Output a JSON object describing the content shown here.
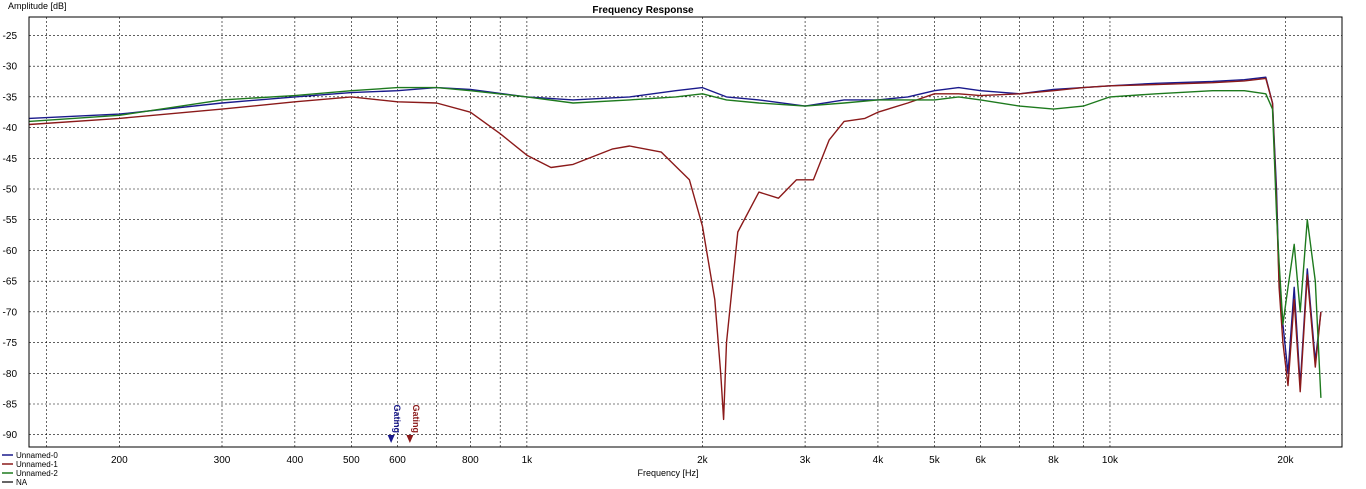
{
  "chart_data": {
    "type": "line",
    "title": "Frequency Response",
    "xlabel": "Frequency [Hz]",
    "ylabel": "Amplitude [dB]",
    "xscale": "log",
    "xlim": [
      140,
      25000
    ],
    "ylim": [
      -92,
      -22
    ],
    "grid": true,
    "legend_position": "bottom-left",
    "colors": {
      "background": "#ffffff",
      "grid": "#000000",
      "Unnamed-0": "#1a1a8c",
      "Unnamed-1": "#8b1a1a",
      "Unnamed-2": "#1e7a1e",
      "NA": "#333333"
    },
    "x_ticks": [
      {
        "value": 200,
        "label": "200"
      },
      {
        "value": 300,
        "label": "300"
      },
      {
        "value": 400,
        "label": "400"
      },
      {
        "value": 500,
        "label": "500"
      },
      {
        "value": 600,
        "label": "600"
      },
      {
        "value": 800,
        "label": "800"
      },
      {
        "value": 1000,
        "label": "1k"
      },
      {
        "value": 2000,
        "label": "2k"
      },
      {
        "value": 3000,
        "label": "3k"
      },
      {
        "value": 4000,
        "label": "4k"
      },
      {
        "value": 5000,
        "label": "5k"
      },
      {
        "value": 6000,
        "label": "6k"
      },
      {
        "value": 8000,
        "label": "8k"
      },
      {
        "value": 10000,
        "label": "10k"
      },
      {
        "value": 20000,
        "label": "20k"
      }
    ],
    "x_minor_grid": [
      150,
      700,
      900,
      7000,
      9000
    ],
    "y_ticks": [
      -25,
      -30,
      -35,
      -40,
      -45,
      -50,
      -55,
      -60,
      -65,
      -70,
      -75,
      -80,
      -85,
      -90
    ],
    "markers": [
      {
        "label": "Gating",
        "x": 585,
        "color": "#1a1a8c"
      },
      {
        "label": "Gating",
        "x": 630,
        "color": "#8b1a1a"
      }
    ],
    "series": [
      {
        "name": "Unnamed-0",
        "x": [
          140,
          200,
          300,
          400,
          500,
          600,
          700,
          800,
          1000,
          1200,
          1500,
          1800,
          2000,
          2200,
          2500,
          3000,
          3500,
          4000,
          4500,
          5000,
          5500,
          6000,
          7000,
          8000,
          9000,
          10000,
          12000,
          15000,
          17000,
          18500,
          19000,
          19300,
          19500,
          19800,
          20200,
          20700,
          21200,
          21800,
          22500,
          23000
        ],
        "y": [
          -38.5,
          -37.8,
          -36,
          -35,
          -34.3,
          -34,
          -33.5,
          -33.8,
          -35,
          -35.5,
          -35,
          -34,
          -33.5,
          -35,
          -35.5,
          -36.5,
          -35.5,
          -35.5,
          -35,
          -34,
          -33.5,
          -34,
          -34.5,
          -33.8,
          -33.5,
          -33.2,
          -32.8,
          -32.5,
          -32.2,
          -31.8,
          -36,
          -50,
          -65,
          -72,
          -80,
          -66,
          -82,
          -63,
          -78,
          -70
        ]
      },
      {
        "name": "Unnamed-1",
        "x": [
          140,
          200,
          300,
          400,
          500,
          600,
          700,
          800,
          900,
          1000,
          1100,
          1200,
          1400,
          1500,
          1700,
          1900,
          2000,
          2100,
          2150,
          2175,
          2200,
          2300,
          2500,
          2700,
          2900,
          3100,
          3300,
          3500,
          3800,
          4000,
          4500,
          5000,
          5500,
          6000,
          7000,
          8000,
          9000,
          10000,
          12000,
          15000,
          17000,
          18500,
          19000,
          19300,
          19500,
          19800,
          20200,
          20700,
          21200,
          21800,
          22500,
          23000
        ],
        "y": [
          -39.5,
          -38.5,
          -37,
          -35.8,
          -35,
          -35.8,
          -36,
          -37.5,
          -41,
          -44.5,
          -46.5,
          -46,
          -43.5,
          -43,
          -44,
          -48.5,
          -56,
          -68,
          -80,
          -87.5,
          -75,
          -57,
          -50.5,
          -51.5,
          -48.5,
          -48.5,
          -42,
          -39,
          -38.5,
          -37.5,
          -36,
          -34.5,
          -34.5,
          -34.8,
          -34.5,
          -34,
          -33.5,
          -33.2,
          -33,
          -32.7,
          -32.4,
          -32,
          -36,
          -52,
          -66,
          -75,
          -82,
          -68,
          -83,
          -64,
          -79,
          -70
        ]
      },
      {
        "name": "Unnamed-2",
        "x": [
          140,
          200,
          300,
          400,
          500,
          600,
          700,
          800,
          1000,
          1200,
          1500,
          1800,
          2000,
          2200,
          2500,
          3000,
          3500,
          4000,
          4500,
          5000,
          5500,
          6000,
          7000,
          8000,
          9000,
          10000,
          12000,
          15000,
          17000,
          18500,
          19000,
          19300,
          19500,
          19800,
          20200,
          20700,
          21200,
          21800,
          22500,
          23000
        ],
        "y": [
          -39,
          -38,
          -35.5,
          -34.8,
          -34,
          -33.5,
          -33.5,
          -34,
          -35,
          -36,
          -35.5,
          -35,
          -34.5,
          -35.5,
          -36,
          -36.5,
          -36,
          -35.5,
          -35.5,
          -35.5,
          -35,
          -35.5,
          -36.5,
          -37,
          -36.5,
          -35,
          -34.5,
          -34,
          -34,
          -34.5,
          -37,
          -54,
          -62,
          -72,
          -66,
          -59,
          -70,
          -55,
          -65,
          -84
        ]
      },
      {
        "name": "NA",
        "x": [],
        "y": []
      }
    ]
  }
}
